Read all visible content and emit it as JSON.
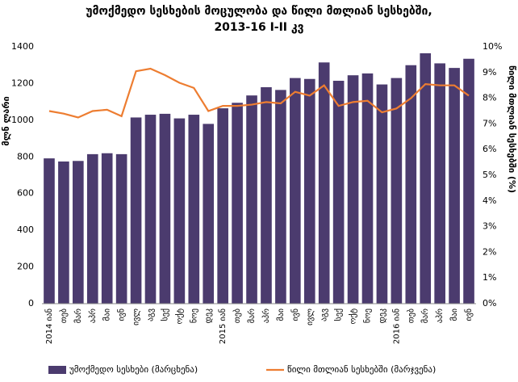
{
  "chart_data": {
    "type": "bar_line",
    "title": "უმოქმედო სესხების მოცულობა და წილი მთლიან სესხებში,",
    "subtitle": "2013-16 I-II კვ",
    "y_label": "მლნ ლარი",
    "y2_label": "წილი მთლიან სესხებში (%)",
    "categories": [
      "2014 იან",
      "თებ",
      "მარ",
      "აპრ",
      "მაი",
      "ივნ",
      "ივლ",
      "აგვ",
      "სექ",
      "ოქტ",
      "ნოე",
      "დეკ",
      "2015 იან",
      "თებ",
      "მარ",
      "აპრ",
      "მაი",
      "ივნ",
      "ივლ",
      "აგვ",
      "სექ",
      "ოქტ",
      "ნოე",
      "დეკ",
      "2016 იან",
      "თებ",
      "მარ",
      "აპრ",
      "მაი",
      "ივნ"
    ],
    "series": [
      {
        "name": "უმოქმედო სესხები (მარცხენა)",
        "color": "#4b3b6e",
        "kind": "bar",
        "values": [
          792,
          775,
          778,
          815,
          820,
          815,
          1015,
          1030,
          1035,
          1010,
          1030,
          980,
          1065,
          1095,
          1135,
          1180,
          1165,
          1230,
          1225,
          1315,
          1215,
          1245,
          1255,
          1195,
          1230,
          1300,
          1365,
          1310,
          1285,
          1335
        ]
      },
      {
        "name": "წილი მთლიან სესხებში (მარჯვენა)",
        "color": "#ed7d31",
        "kind": "line",
        "axis": "y2",
        "values": [
          7.5,
          7.4,
          7.25,
          7.5,
          7.55,
          7.3,
          9.05,
          9.15,
          8.9,
          8.6,
          8.4,
          7.5,
          7.7,
          7.7,
          7.75,
          7.85,
          7.8,
          8.25,
          8.1,
          8.5,
          7.7,
          7.85,
          7.9,
          7.45,
          7.6,
          8.0,
          8.55,
          8.5,
          8.5,
          8.1
        ]
      }
    ],
    "ylim": [
      0,
      1400
    ],
    "yticks": [
      0,
      200,
      400,
      600,
      800,
      1000,
      1200,
      1400
    ],
    "y2lim": [
      0,
      10
    ],
    "y2ticks": [
      {
        "value": 0,
        "label": "0%"
      },
      {
        "value": 1,
        "label": "1%"
      },
      {
        "value": 2,
        "label": "2%"
      },
      {
        "value": 3,
        "label": "3%"
      },
      {
        "value": 4,
        "label": "4%"
      },
      {
        "value": 5,
        "label": "5%"
      },
      {
        "value": 6,
        "label": "6%"
      },
      {
        "value": 7,
        "label": "7%"
      },
      {
        "value": 8,
        "label": "8%"
      },
      {
        "value": 9,
        "label": "9%"
      },
      {
        "value": 10,
        "label": "10%"
      }
    ],
    "legend": "bottom"
  }
}
